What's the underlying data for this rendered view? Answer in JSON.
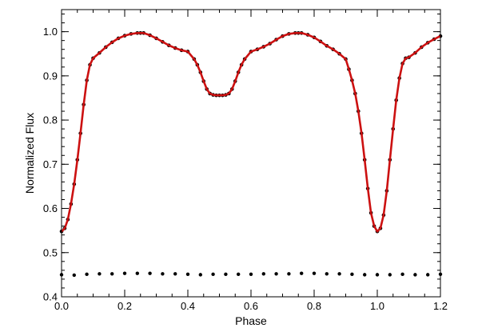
{
  "chart_data": {
    "type": "scatter",
    "title": "",
    "xlabel": "Phase",
    "ylabel": "Normalized Flux",
    "xlim": [
      0.0,
      1.2
    ],
    "ylim": [
      0.4,
      1.05
    ],
    "xticks": [
      "0.0",
      "0.2",
      "0.4",
      "0.6",
      "0.8",
      "1.0",
      "1.2"
    ],
    "yticks": [
      "0.4",
      "0.5",
      "0.6",
      "0.7",
      "0.8",
      "0.9",
      "1.0"
    ],
    "grid": false,
    "legend": "none",
    "series": [
      {
        "kind": "points",
        "color": "#000000",
        "x": [
          0.0,
          0.01,
          0.02,
          0.03,
          0.04,
          0.05,
          0.06,
          0.07,
          0.08,
          0.09,
          0.1,
          0.12,
          0.14,
          0.16,
          0.18,
          0.2,
          0.22,
          0.24,
          0.25,
          0.26,
          0.28,
          0.3,
          0.32,
          0.34,
          0.36,
          0.38,
          0.4,
          0.42,
          0.43,
          0.44,
          0.45,
          0.46,
          0.47,
          0.48,
          0.49,
          0.5,
          0.51,
          0.52,
          0.53,
          0.54,
          0.55,
          0.56,
          0.57,
          0.58,
          0.6,
          0.62,
          0.64,
          0.66,
          0.68,
          0.7,
          0.72,
          0.74,
          0.75,
          0.76,
          0.78,
          0.8,
          0.82,
          0.84,
          0.86,
          0.88,
          0.9,
          0.91,
          0.92,
          0.93,
          0.94,
          0.95,
          0.96,
          0.97,
          0.98,
          0.99,
          1.0,
          1.01,
          1.02,
          1.03,
          1.04,
          1.05,
          1.06,
          1.07,
          1.08,
          1.09,
          1.1,
          1.12,
          1.14,
          1.16,
          1.18,
          1.2
        ],
        "y": [
          0.548,
          0.555,
          0.575,
          0.61,
          0.655,
          0.71,
          0.77,
          0.835,
          0.89,
          0.925,
          0.94,
          0.952,
          0.965,
          0.976,
          0.985,
          0.991,
          0.995,
          0.997,
          0.997,
          0.997,
          0.992,
          0.985,
          0.977,
          0.969,
          0.963,
          0.958,
          0.955,
          0.938,
          0.925,
          0.908,
          0.888,
          0.87,
          0.86,
          0.857,
          0.856,
          0.856,
          0.856,
          0.857,
          0.86,
          0.87,
          0.888,
          0.908,
          0.925,
          0.938,
          0.955,
          0.96,
          0.966,
          0.973,
          0.982,
          0.99,
          0.995,
          0.997,
          0.997,
          0.997,
          0.993,
          0.987,
          0.978,
          0.968,
          0.96,
          0.95,
          0.938,
          0.915,
          0.89,
          0.86,
          0.82,
          0.77,
          0.71,
          0.645,
          0.59,
          0.56,
          0.548,
          0.555,
          0.585,
          0.64,
          0.71,
          0.78,
          0.845,
          0.895,
          0.928,
          0.94,
          0.942,
          0.952,
          0.965,
          0.975,
          0.983,
          0.99
        ]
      },
      {
        "kind": "line",
        "color": "#cc1111",
        "x": [
          0.0,
          0.01,
          0.02,
          0.03,
          0.04,
          0.05,
          0.06,
          0.07,
          0.08,
          0.09,
          0.1,
          0.12,
          0.14,
          0.16,
          0.18,
          0.2,
          0.22,
          0.24,
          0.25,
          0.26,
          0.28,
          0.3,
          0.32,
          0.34,
          0.36,
          0.38,
          0.4,
          0.42,
          0.43,
          0.44,
          0.45,
          0.46,
          0.47,
          0.48,
          0.49,
          0.5,
          0.51,
          0.52,
          0.53,
          0.54,
          0.55,
          0.56,
          0.57,
          0.58,
          0.6,
          0.62,
          0.64,
          0.66,
          0.68,
          0.7,
          0.72,
          0.74,
          0.75,
          0.76,
          0.78,
          0.8,
          0.82,
          0.84,
          0.86,
          0.88,
          0.9,
          0.91,
          0.92,
          0.93,
          0.94,
          0.95,
          0.96,
          0.97,
          0.98,
          0.99,
          1.0,
          1.01,
          1.02,
          1.03,
          1.04,
          1.05,
          1.06,
          1.07,
          1.08,
          1.09,
          1.1,
          1.12,
          1.14,
          1.16,
          1.18,
          1.2
        ],
        "y": [
          0.548,
          0.555,
          0.575,
          0.61,
          0.655,
          0.71,
          0.77,
          0.835,
          0.89,
          0.925,
          0.94,
          0.952,
          0.965,
          0.976,
          0.985,
          0.991,
          0.995,
          0.997,
          0.997,
          0.997,
          0.992,
          0.985,
          0.977,
          0.969,
          0.963,
          0.958,
          0.955,
          0.938,
          0.925,
          0.908,
          0.888,
          0.87,
          0.86,
          0.857,
          0.856,
          0.856,
          0.856,
          0.857,
          0.86,
          0.87,
          0.888,
          0.908,
          0.925,
          0.938,
          0.955,
          0.96,
          0.966,
          0.973,
          0.982,
          0.99,
          0.995,
          0.997,
          0.997,
          0.997,
          0.993,
          0.987,
          0.978,
          0.968,
          0.96,
          0.95,
          0.938,
          0.915,
          0.89,
          0.86,
          0.82,
          0.77,
          0.71,
          0.645,
          0.59,
          0.56,
          0.548,
          0.555,
          0.585,
          0.64,
          0.71,
          0.78,
          0.845,
          0.895,
          0.928,
          0.94,
          0.942,
          0.952,
          0.965,
          0.975,
          0.983,
          0.99
        ]
      },
      {
        "kind": "points",
        "color": "#000000",
        "x": [
          0.0,
          0.04,
          0.08,
          0.12,
          0.16,
          0.2,
          0.24,
          0.28,
          0.32,
          0.36,
          0.4,
          0.44,
          0.48,
          0.52,
          0.56,
          0.6,
          0.64,
          0.68,
          0.72,
          0.76,
          0.8,
          0.84,
          0.88,
          0.92,
          0.96,
          1.0,
          1.04,
          1.08,
          1.12,
          1.16,
          1.2
        ],
        "y": [
          0.45,
          0.449,
          0.451,
          0.452,
          0.452,
          0.453,
          0.453,
          0.453,
          0.452,
          0.452,
          0.451,
          0.45,
          0.451,
          0.451,
          0.451,
          0.451,
          0.452,
          0.452,
          0.452,
          0.453,
          0.453,
          0.452,
          0.452,
          0.451,
          0.45,
          0.45,
          0.45,
          0.451,
          0.45,
          0.45,
          0.451
        ]
      }
    ]
  }
}
